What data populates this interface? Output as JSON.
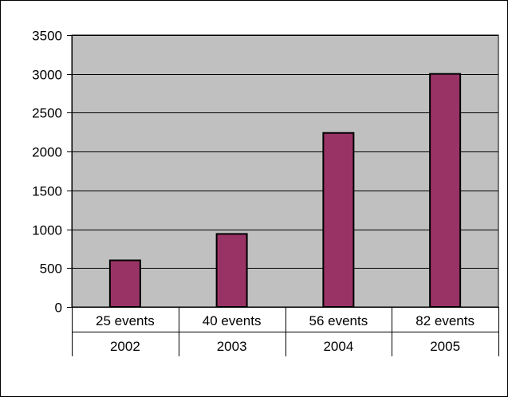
{
  "chart_data": {
    "type": "bar",
    "categories": [
      {
        "label": "25 events",
        "year": "2002"
      },
      {
        "label": "40 events",
        "year": "2003"
      },
      {
        "label": "56 events",
        "year": "2004"
      },
      {
        "label": "82 events",
        "year": "2005"
      }
    ],
    "values": [
      600,
      940,
      2240,
      3000
    ],
    "ylim": [
      0,
      3500
    ],
    "yticks": [
      "0",
      "500",
      "1000",
      "1500",
      "2000",
      "2500",
      "3000",
      "3500"
    ],
    "grid": true,
    "legend": "none",
    "colors": {
      "bar_fill": "#993366",
      "bar_stroke": "#000000",
      "plot_background": "#c0c0c0",
      "gridline": "#000000",
      "frame": "#000000"
    }
  }
}
